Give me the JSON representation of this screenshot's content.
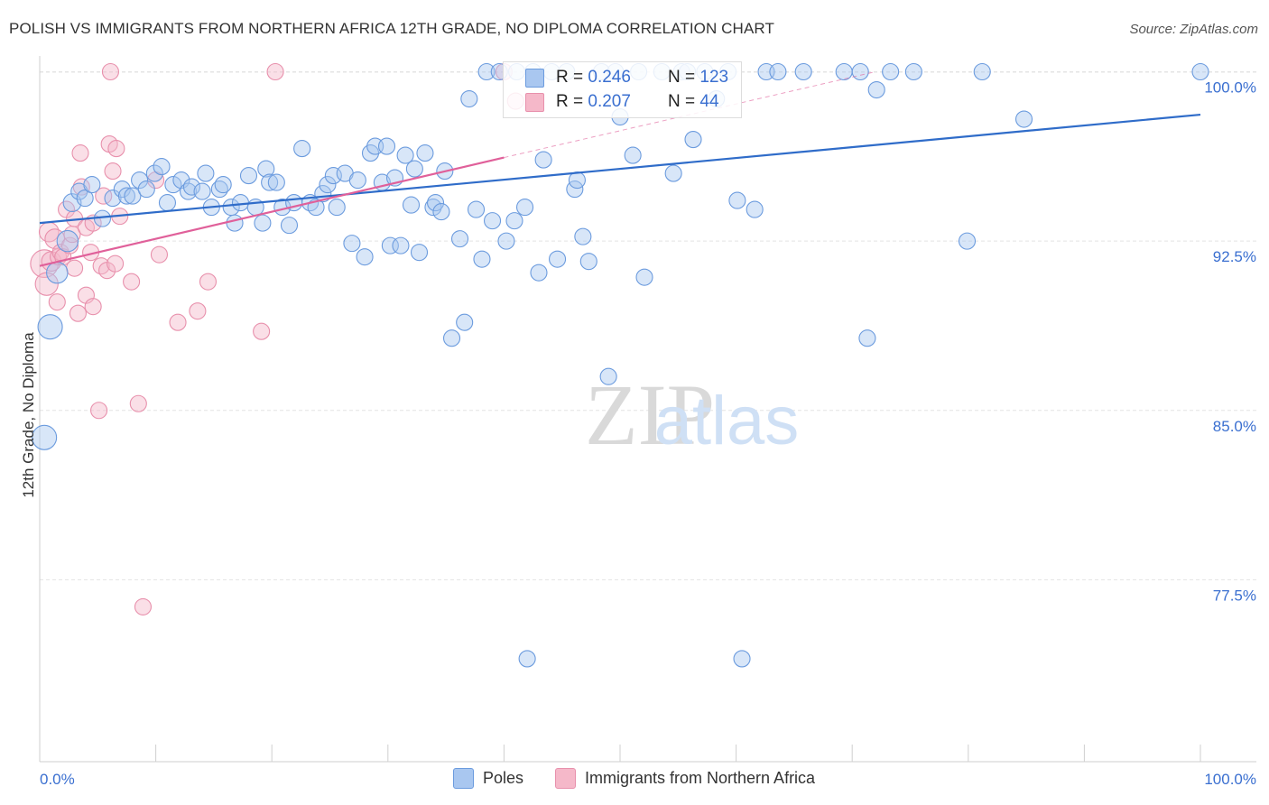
{
  "title": "POLISH VS IMMIGRANTS FROM NORTHERN AFRICA 12TH GRADE, NO DIPLOMA CORRELATION CHART",
  "source": "Source: ZipAtlas.com",
  "watermark": {
    "zip": "ZIP",
    "atlas": "atlas"
  },
  "legend_top": {
    "rows": [
      {
        "r_label": "R = ",
        "r_value": "0.246",
        "n_label": "N = ",
        "n_value": "123",
        "color": "#a9c7f0"
      },
      {
        "r_label": "R = ",
        "r_value": "0.207",
        "n_label": "N = ",
        "n_value": "44",
        "color": "#f5b8c9"
      }
    ]
  },
  "legend_bottom": [
    {
      "label": "Poles",
      "color": "#a9c7f0"
    },
    {
      "label": "Immigrants from Northern Africa",
      "color": "#f5b8c9"
    }
  ],
  "chart_data": {
    "type": "scatter",
    "title": "POLISH VS IMMIGRANTS FROM NORTHERN AFRICA 12TH GRADE, NO DIPLOMA CORRELATION CHART",
    "xlabel": "",
    "ylabel": "12th Grade, No Diploma",
    "xlim": [
      0,
      100
    ],
    "ylim": [
      70.0,
      100.7
    ],
    "x_tick_labels": [
      "0.0%",
      "100.0%"
    ],
    "y_ticks": [
      {
        "value": 100.0,
        "label": "100.0%"
      },
      {
        "value": 92.5,
        "label": "92.5%"
      },
      {
        "value": 85.0,
        "label": "85.0%"
      },
      {
        "value": 77.5,
        "label": "77.5%"
      }
    ],
    "grid": true,
    "colors": {
      "poles": "#6b9bde",
      "poles_fill": "#a9c7f0",
      "poles_line": "#2f6cc9",
      "na": "#e890ac",
      "na_fill": "#f5b8c9",
      "na_line": "#e0609a"
    },
    "series": [
      {
        "name": "Poles",
        "trend": {
          "x0": 0,
          "y0": 93.3,
          "x1": 100,
          "y1": 98.1
        },
        "points": [
          [
            0.4,
            83.8,
            1.5
          ],
          [
            0.9,
            88.7,
            1.5
          ],
          [
            1.5,
            91.1,
            1.3
          ],
          [
            2.4,
            92.5,
            1.3
          ],
          [
            2.8,
            94.2,
            1.1
          ],
          [
            3.4,
            94.7,
            1.0
          ],
          [
            3.9,
            94.4,
            1.0
          ],
          [
            4.5,
            95.0,
            1.0
          ],
          [
            5.4,
            93.5,
            1.0
          ],
          [
            6.3,
            94.4,
            1.0
          ],
          [
            7.1,
            94.8,
            1.0
          ],
          [
            7.5,
            94.5,
            1.0
          ],
          [
            8.0,
            94.5,
            1.0
          ],
          [
            8.6,
            95.2,
            1.0
          ],
          [
            9.2,
            94.8,
            1.0
          ],
          [
            9.9,
            95.5,
            1.0
          ],
          [
            10.5,
            95.8,
            1.0
          ],
          [
            11.0,
            94.2,
            1.0
          ],
          [
            11.5,
            95.0,
            1.0
          ],
          [
            12.2,
            95.2,
            1.0
          ],
          [
            12.8,
            94.7,
            1.0
          ],
          [
            13.1,
            94.9,
            1.0
          ],
          [
            14.0,
            94.7,
            1.0
          ],
          [
            14.3,
            95.5,
            1.0
          ],
          [
            14.8,
            94.0,
            1.0
          ],
          [
            15.5,
            94.8,
            1.0
          ],
          [
            15.8,
            95.0,
            1.0
          ],
          [
            16.5,
            94.0,
            1.0
          ],
          [
            16.8,
            93.3,
            1.0
          ],
          [
            17.3,
            94.2,
            1.0
          ],
          [
            18.0,
            95.4,
            1.0
          ],
          [
            19.2,
            93.3,
            1.0
          ],
          [
            18.6,
            94.0,
            1.0
          ],
          [
            19.5,
            95.7,
            1.0
          ],
          [
            19.8,
            95.1,
            1.0
          ],
          [
            20.4,
            95.1,
            1.0
          ],
          [
            20.9,
            94.0,
            1.0
          ],
          [
            21.5,
            93.2,
            1.0
          ],
          [
            21.9,
            94.2,
            1.0
          ],
          [
            22.6,
            96.6,
            1.0
          ],
          [
            23.3,
            94.2,
            1.0
          ],
          [
            23.8,
            94.0,
            1.0
          ],
          [
            24.4,
            94.6,
            1.0
          ],
          [
            24.8,
            95.0,
            1.0
          ],
          [
            25.3,
            95.4,
            1.0
          ],
          [
            25.6,
            94.0,
            1.0
          ],
          [
            26.3,
            95.5,
            1.0
          ],
          [
            26.9,
            92.4,
            1.0
          ],
          [
            27.4,
            95.2,
            1.0
          ],
          [
            28.0,
            91.8,
            1.0
          ],
          [
            28.5,
            96.4,
            1.0
          ],
          [
            28.9,
            96.7,
            1.0
          ],
          [
            29.5,
            95.1,
            1.0
          ],
          [
            29.9,
            96.7,
            1.0
          ],
          [
            30.2,
            92.3,
            1.0
          ],
          [
            30.6,
            95.3,
            1.0
          ],
          [
            31.1,
            92.3,
            1.0
          ],
          [
            31.5,
            96.3,
            1.0
          ],
          [
            32.0,
            94.1,
            1.0
          ],
          [
            32.3,
            95.7,
            1.0
          ],
          [
            32.7,
            92.0,
            1.0
          ],
          [
            33.2,
            96.4,
            1.0
          ],
          [
            33.9,
            94.0,
            1.0
          ],
          [
            34.1,
            94.2,
            1.0
          ],
          [
            34.6,
            93.8,
            1.0
          ],
          [
            34.9,
            95.6,
            1.0
          ],
          [
            35.5,
            88.2,
            1.0
          ],
          [
            36.2,
            92.6,
            1.0
          ],
          [
            36.6,
            88.9,
            1.0
          ],
          [
            37.0,
            98.8,
            1.0
          ],
          [
            37.6,
            93.9,
            1.0
          ],
          [
            38.1,
            91.7,
            1.0
          ],
          [
            38.5,
            100.0,
            1.0
          ],
          [
            39.0,
            93.4,
            1.0
          ],
          [
            39.6,
            100.0,
            1.0
          ],
          [
            40.2,
            92.5,
            1.0
          ],
          [
            40.9,
            93.4,
            1.0
          ],
          [
            41.1,
            100.0,
            1.0
          ],
          [
            41.8,
            94.0,
            1.0
          ],
          [
            42.0,
            74.0,
            1.0
          ],
          [
            42.5,
            100.0,
            1.0
          ],
          [
            43.0,
            91.1,
            1.0
          ],
          [
            43.4,
            96.1,
            1.0
          ],
          [
            44.1,
            100.0,
            1.0
          ],
          [
            44.6,
            91.7,
            1.0
          ],
          [
            45.4,
            100.0,
            1.0
          ],
          [
            46.1,
            94.8,
            1.0
          ],
          [
            46.3,
            95.2,
            1.0
          ],
          [
            46.8,
            92.7,
            1.0
          ],
          [
            47.3,
            91.6,
            1.0
          ],
          [
            48.4,
            100.0,
            1.0
          ],
          [
            49.0,
            86.5,
            1.0
          ],
          [
            49.6,
            100.0,
            1.0
          ],
          [
            50.0,
            98.0,
            1.0
          ],
          [
            51.1,
            96.3,
            1.0
          ],
          [
            51.6,
            100.0,
            1.0
          ],
          [
            52.1,
            90.9,
            1.0
          ],
          [
            53.6,
            100.0,
            1.0
          ],
          [
            54.6,
            95.5,
            1.0
          ],
          [
            55.3,
            100.0,
            1.0
          ],
          [
            55.8,
            100.0,
            1.0
          ],
          [
            56.3,
            97.0,
            1.0
          ],
          [
            57.3,
            100.0,
            1.0
          ],
          [
            58.3,
            98.8,
            1.0
          ],
          [
            59.3,
            100.0,
            1.0
          ],
          [
            60.1,
            94.3,
            1.0
          ],
          [
            60.5,
            74.0,
            1.0
          ],
          [
            61.6,
            93.9,
            1.0
          ],
          [
            62.6,
            100.0,
            1.0
          ],
          [
            63.6,
            100.0,
            1.0
          ],
          [
            65.8,
            100.0,
            1.0
          ],
          [
            69.3,
            100.0,
            1.0
          ],
          [
            70.7,
            100.0,
            1.0
          ],
          [
            71.3,
            88.2,
            1.0
          ],
          [
            72.1,
            99.2,
            1.0
          ],
          [
            73.3,
            100.0,
            1.0
          ],
          [
            75.3,
            100.0,
            1.0
          ],
          [
            79.9,
            92.5,
            1.0
          ],
          [
            81.2,
            100.0,
            1.0
          ],
          [
            84.8,
            97.9,
            1.0
          ],
          [
            100.0,
            100.0,
            1.0
          ]
        ]
      },
      {
        "name": "Immigrants from Northern Africa",
        "trend": {
          "x0": 0,
          "y0": 91.4,
          "x1": 40,
          "y1": 96.2
        },
        "trend_extension": {
          "x0": 40,
          "y0": 96.2,
          "x1": 72,
          "y1": 100.0
        },
        "points": [
          [
            0.4,
            91.5,
            1.7
          ],
          [
            0.6,
            90.6,
            1.4
          ],
          [
            0.8,
            92.9,
            1.2
          ],
          [
            1.0,
            91.6,
            1.2
          ],
          [
            1.3,
            92.6,
            1.2
          ],
          [
            1.5,
            89.8,
            1.0
          ],
          [
            1.6,
            91.8,
            1.0
          ],
          [
            1.8,
            92.0,
            1.0
          ],
          [
            2.0,
            91.8,
            1.0
          ],
          [
            2.3,
            93.9,
            1.0
          ],
          [
            2.6,
            92.3,
            1.0
          ],
          [
            2.8,
            92.8,
            1.0
          ],
          [
            3.0,
            93.5,
            1.0
          ],
          [
            3.0,
            91.3,
            1.0
          ],
          [
            3.3,
            89.3,
            1.0
          ],
          [
            3.5,
            96.4,
            1.0
          ],
          [
            3.6,
            94.9,
            1.0
          ],
          [
            4.0,
            93.1,
            1.0
          ],
          [
            4.0,
            90.1,
            1.0
          ],
          [
            4.4,
            92.0,
            1.0
          ],
          [
            4.6,
            89.6,
            1.0
          ],
          [
            4.6,
            93.3,
            1.0
          ],
          [
            5.1,
            85.0,
            1.0
          ],
          [
            5.3,
            91.4,
            1.0
          ],
          [
            5.5,
            94.5,
            1.0
          ],
          [
            5.8,
            91.2,
            1.0
          ],
          [
            6.0,
            96.8,
            1.0
          ],
          [
            6.1,
            100.0,
            1.0
          ],
          [
            6.3,
            95.6,
            1.0
          ],
          [
            6.5,
            91.5,
            1.0
          ],
          [
            6.6,
            96.6,
            1.0
          ],
          [
            6.9,
            93.6,
            1.0
          ],
          [
            7.9,
            90.7,
            1.0
          ],
          [
            8.5,
            85.3,
            1.0
          ],
          [
            8.9,
            76.3,
            1.0
          ],
          [
            10.0,
            95.2,
            1.0
          ],
          [
            10.3,
            91.9,
            1.0
          ],
          [
            11.9,
            88.9,
            1.0
          ],
          [
            13.6,
            89.4,
            1.0
          ],
          [
            14.5,
            90.7,
            1.0
          ],
          [
            19.1,
            88.5,
            1.0
          ],
          [
            20.3,
            100.0,
            1.0
          ],
          [
            40.0,
            100.0,
            1.0
          ],
          [
            41.0,
            98.7,
            1.0
          ]
        ]
      }
    ]
  }
}
